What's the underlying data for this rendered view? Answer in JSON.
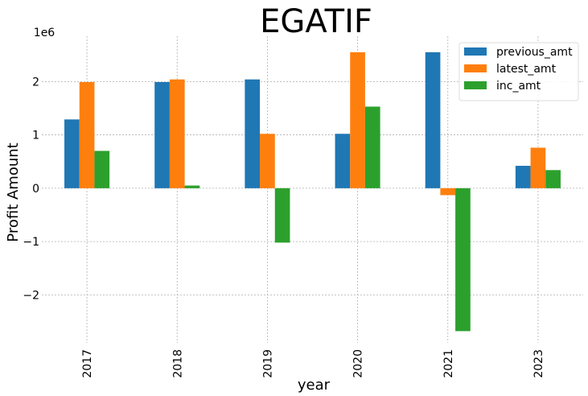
{
  "chart_data": {
    "type": "bar",
    "title": "EGATIF",
    "xlabel": "year",
    "ylabel": "Profit Amount",
    "y_offset_label": "1e6",
    "categories": [
      "2017",
      "2018",
      "2019",
      "2020",
      "2021",
      "2023"
    ],
    "series": [
      {
        "name": "previous_amt",
        "color": "#1f77b4",
        "values": [
          1.29,
          1.99,
          2.04,
          1.02,
          2.55,
          0.42
        ]
      },
      {
        "name": "latest_amt",
        "color": "#ff7f0e",
        "values": [
          1.99,
          2.04,
          1.02,
          2.55,
          -0.13,
          0.76
        ]
      },
      {
        "name": "inc_amt",
        "color": "#2ca02c",
        "values": [
          0.7,
          0.05,
          -1.02,
          1.53,
          -2.68,
          0.34
        ]
      }
    ],
    "ylim": [
      -2.9,
      2.85
    ],
    "yticks": [
      -2,
      -1,
      0,
      1,
      2
    ],
    "ytick_labels": [
      "−2",
      "−1",
      "0",
      "1",
      "2"
    ],
    "grid": true,
    "legend_position": "top-right"
  }
}
